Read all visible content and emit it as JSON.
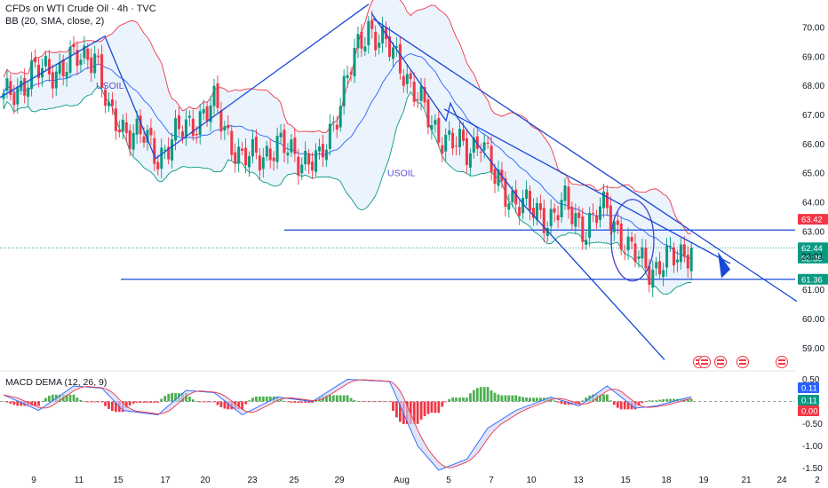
{
  "header": {
    "symbol_line": "CFDs on WTI Crude Oil · 4h · TVC",
    "indicator_line": "BB (20, SMA, close, 2)"
  },
  "macd_label": "MACD DEMA (12, 26, 9)",
  "colors": {
    "up": "#089981",
    "down": "#f23645",
    "bb_mid": "#2962ff",
    "bb_upper": "#f23645",
    "bb_lower": "#089981",
    "bb_fill": "#e8f1fb",
    "drawing": "#1848d6",
    "macd_line": "#2962ff",
    "signal_line": "#f23645",
    "hist_up": "#4caf50",
    "hist_down": "#f23645"
  },
  "annotations": [
    {
      "text": "USOIL",
      "near": "mid-left"
    },
    {
      "text": "USOIL",
      "near": "center"
    }
  ],
  "chart_data": [
    {
      "type": "candlestick",
      "title": "CFDs on WTI Crude Oil · 4h · TVC",
      "price_axis_ticks": [
        "70.00",
        "69.00",
        "68.00",
        "67.00",
        "66.00",
        "65.00",
        "64.00",
        "63.00",
        "61.00",
        "60.00",
        "59.00"
      ],
      "ylim": [
        58.4,
        70.7
      ],
      "date_axis_ticks": [
        "9",
        "11",
        "15",
        "17",
        "20",
        "23",
        "25",
        "29",
        "Aug",
        "5",
        "7",
        "10",
        "13",
        "15",
        "18",
        "19",
        "21",
        "24",
        "2"
      ],
      "price_tags": [
        {
          "value": 63.42,
          "label": "63.42",
          "color": "#f23645"
        },
        {
          "value": 62.44,
          "label": "62.44",
          "color": "#089981"
        },
        {
          "value": 62.39,
          "label": "62.39",
          "color": "#089981"
        },
        {
          "value": 61.36,
          "label": "61.36",
          "color": "#089981"
        }
      ],
      "countdown": "23:01",
      "indicator": "BB (20, SMA, close, 2)",
      "horizontal_lines": [
        63.05,
        61.36
      ],
      "close_path": [
        {
          "i": 0,
          "close": 67.5
        },
        {
          "i": 8,
          "close": 68.4
        },
        {
          "i": 16,
          "close": 68.6
        },
        {
          "i": 26,
          "close": 69.2
        },
        {
          "i": 30,
          "close": 66.9
        },
        {
          "i": 40,
          "close": 66.2
        },
        {
          "i": 44,
          "close": 65.6
        },
        {
          "i": 52,
          "close": 66.6
        },
        {
          "i": 60,
          "close": 67.3
        },
        {
          "i": 68,
          "close": 65.4
        },
        {
          "i": 78,
          "close": 65.9
        },
        {
          "i": 90,
          "close": 65.3
        },
        {
          "i": 98,
          "close": 68.3
        },
        {
          "i": 104,
          "close": 70.1
        },
        {
          "i": 114,
          "close": 68.6
        },
        {
          "i": 122,
          "close": 66.6
        },
        {
          "i": 132,
          "close": 65.7
        },
        {
          "i": 136,
          "close": 66.3
        },
        {
          "i": 140,
          "close": 64.7
        },
        {
          "i": 150,
          "close": 63.7
        },
        {
          "i": 156,
          "close": 63.5
        },
        {
          "i": 160,
          "close": 63.9
        },
        {
          "i": 166,
          "close": 63.1
        },
        {
          "i": 172,
          "close": 63.9
        },
        {
          "i": 178,
          "close": 62.3
        },
        {
          "i": 186,
          "close": 61.7
        },
        {
          "i": 196,
          "close": 62.5
        }
      ]
    },
    {
      "type": "bar",
      "title": "MACD DEMA (12, 26, 9)",
      "axis_ticks": [
        "0.50",
        "0.00",
        "-0.50",
        "-1.00",
        "-1.50"
      ],
      "ylim": [
        -1.65,
        0.55
      ],
      "value_tags": [
        {
          "value": 0.11,
          "label": "0.11",
          "color": "#2962ff"
        },
        {
          "value": 0.11,
          "label": "0.11",
          "color": "#089981"
        },
        {
          "value": 0.0,
          "label": "0.00",
          "color": "#f23645"
        }
      ],
      "macd_path": [
        {
          "i": 0,
          "v": 0.15
        },
        {
          "i": 10,
          "v": -0.2
        },
        {
          "i": 20,
          "v": 0.35
        },
        {
          "i": 28,
          "v": 0.3
        },
        {
          "i": 34,
          "v": -0.2
        },
        {
          "i": 44,
          "v": -0.3
        },
        {
          "i": 52,
          "v": 0.25
        },
        {
          "i": 60,
          "v": 0.2
        },
        {
          "i": 68,
          "v": -0.3
        },
        {
          "i": 78,
          "v": 0.1
        },
        {
          "i": 88,
          "v": 0.0
        },
        {
          "i": 98,
          "v": 0.5
        },
        {
          "i": 110,
          "v": 0.45
        },
        {
          "i": 118,
          "v": -1.0
        },
        {
          "i": 124,
          "v": -1.55
        },
        {
          "i": 132,
          "v": -1.3
        },
        {
          "i": 138,
          "v": -0.6
        },
        {
          "i": 146,
          "v": -0.2
        },
        {
          "i": 156,
          "v": 0.1
        },
        {
          "i": 164,
          "v": -0.1
        },
        {
          "i": 172,
          "v": 0.35
        },
        {
          "i": 180,
          "v": -0.15
        },
        {
          "i": 186,
          "v": -0.1
        },
        {
          "i": 196,
          "v": 0.11
        }
      ]
    }
  ]
}
